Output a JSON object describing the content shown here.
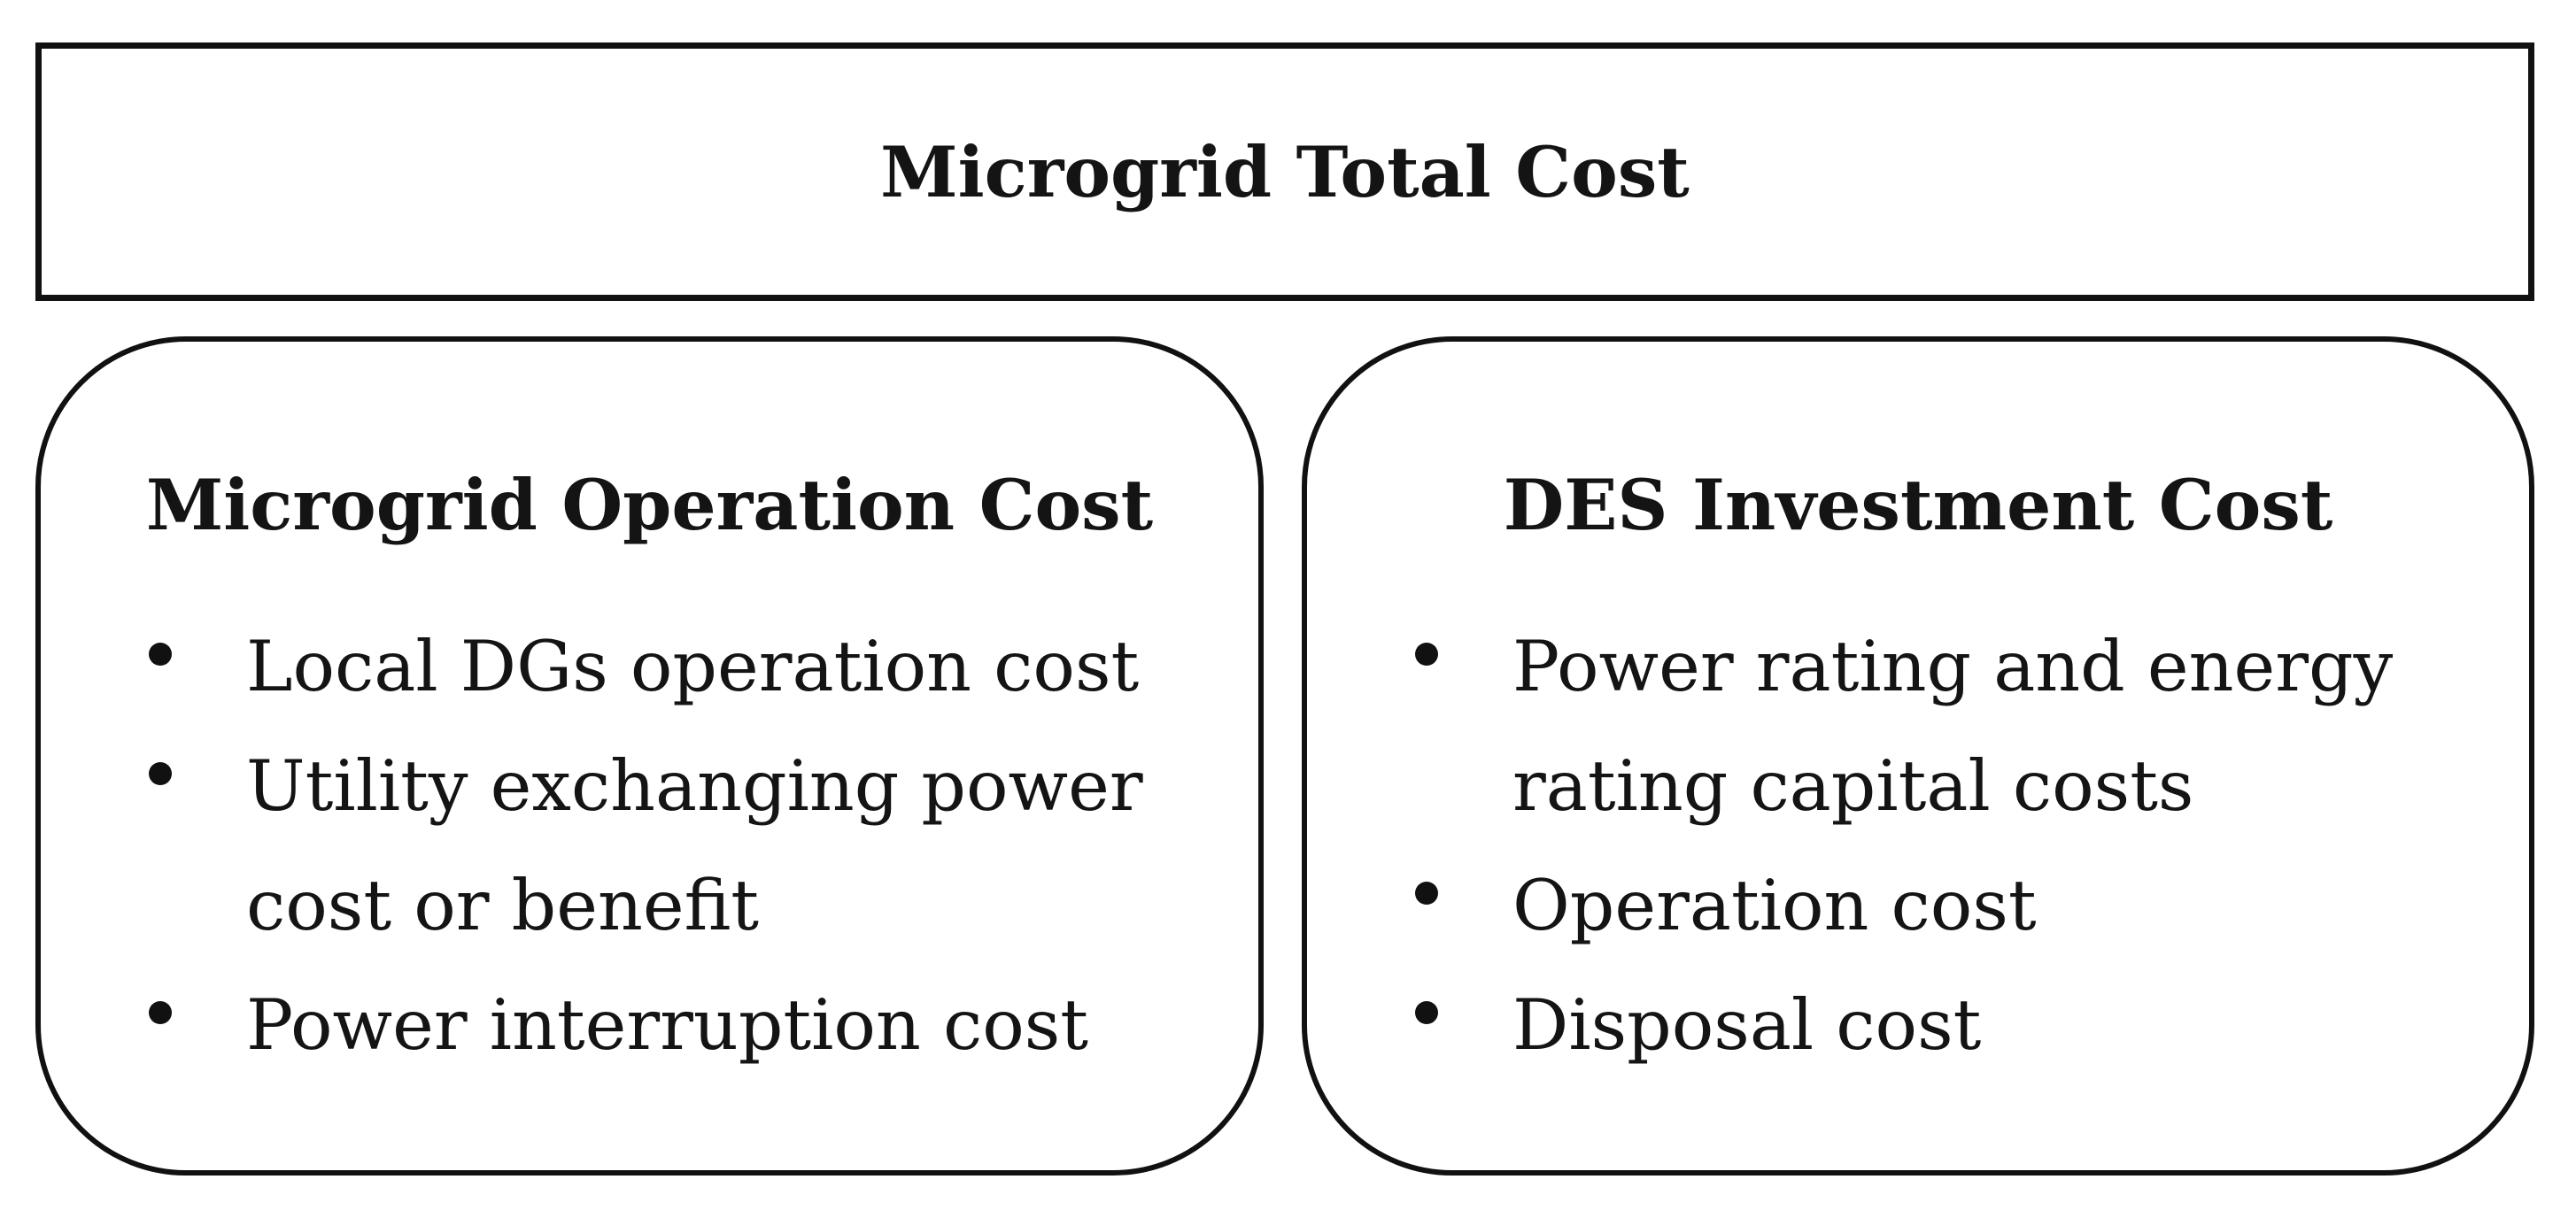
{
  "diagram": {
    "top": {
      "title": "Microgrid Total Cost"
    },
    "left_panel": {
      "title": "Microgrid Operation Cost",
      "items": [
        {
          "text": "Local DGs operation cost"
        },
        {
          "text": "Utility exchanging power\ncost or benefit"
        },
        {
          "text": "Power interruption cost"
        }
      ]
    },
    "right_panel": {
      "title": "DES Investment Cost",
      "items": [
        {
          "text": "Power rating and energy\nrating capital costs"
        },
        {
          "text": "Operation cost"
        },
        {
          "text": "Disposal cost"
        }
      ]
    }
  },
  "colors": {
    "border": "#111111",
    "text": "#141414",
    "background": "#ffffff"
  }
}
